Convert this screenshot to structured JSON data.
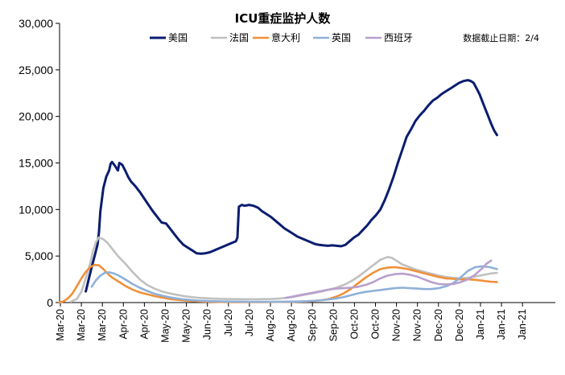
{
  "chart_data": {
    "type": "line",
    "title": "ICU重症监护人数",
    "annotation": "数据截止日期：2/4",
    "xlabel": "",
    "ylabel": "",
    "ylim": [
      0,
      30000
    ],
    "yticks": [
      0,
      5000,
      10000,
      15000,
      20000,
      25000,
      30000
    ],
    "ytick_labels": [
      "0",
      "5,000",
      "10,000",
      "15,000",
      "20,000",
      "25,000",
      "30,000"
    ],
    "x_tick_labels": [
      "Mar-20",
      "Mar-20",
      "Mar-20",
      "Apr-20",
      "Apr-20",
      "May-20",
      "May-20",
      "Jun-20",
      "Jul-20",
      "Jul-20",
      "Aug-20",
      "Aug-20",
      "Sep-20",
      "Sep-20",
      "Oct-20",
      "Oct-20",
      "Nov-20",
      "Nov-20",
      "Dec-20",
      "Dec-20",
      "Jan-21",
      "Jan-21",
      "Jan-21"
    ],
    "grid": false,
    "legend_position": "top",
    "x_range_days": [
      0,
      340
    ],
    "series": [
      {
        "name": "美国",
        "color": "#0b1d6f",
        "width": 3,
        "points": [
          [
            18,
            1200
          ],
          [
            20,
            2500
          ],
          [
            22,
            3800
          ],
          [
            24,
            5000
          ],
          [
            26,
            6200
          ],
          [
            27,
            7500
          ],
          [
            28,
            9800
          ],
          [
            30,
            12300
          ],
          [
            32,
            13500
          ],
          [
            34,
            14200
          ],
          [
            35,
            14900
          ],
          [
            36,
            15100
          ],
          [
            38,
            14700
          ],
          [
            40,
            14200
          ],
          [
            41,
            15000
          ],
          [
            43,
            14800
          ],
          [
            45,
            14200
          ],
          [
            47,
            13500
          ],
          [
            49,
            13000
          ],
          [
            52,
            12500
          ],
          [
            55,
            11900
          ],
          [
            58,
            11200
          ],
          [
            61,
            10500
          ],
          [
            64,
            9800
          ],
          [
            67,
            9200
          ],
          [
            70,
            8600
          ],
          [
            73,
            8500
          ],
          [
            76,
            7900
          ],
          [
            79,
            7300
          ],
          [
            82,
            6700
          ],
          [
            85,
            6200
          ],
          [
            88,
            5900
          ],
          [
            91,
            5600
          ],
          [
            94,
            5300
          ],
          [
            97,
            5250
          ],
          [
            100,
            5300
          ],
          [
            103,
            5400
          ],
          [
            106,
            5600
          ],
          [
            109,
            5800
          ],
          [
            112,
            6000
          ],
          [
            115,
            6200
          ],
          [
            118,
            6400
          ],
          [
            121,
            6600
          ],
          [
            122,
            7000
          ],
          [
            123,
            10300
          ],
          [
            125,
            10500
          ],
          [
            127,
            10400
          ],
          [
            130,
            10500
          ],
          [
            133,
            10400
          ],
          [
            136,
            10200
          ],
          [
            139,
            9800
          ],
          [
            142,
            9500
          ],
          [
            145,
            9200
          ],
          [
            148,
            8800
          ],
          [
            151,
            8400
          ],
          [
            154,
            8000
          ],
          [
            157,
            7700
          ],
          [
            160,
            7400
          ],
          [
            163,
            7100
          ],
          [
            166,
            6900
          ],
          [
            169,
            6700
          ],
          [
            172,
            6500
          ],
          [
            175,
            6300
          ],
          [
            178,
            6200
          ],
          [
            181,
            6150
          ],
          [
            184,
            6100
          ],
          [
            187,
            6150
          ],
          [
            190,
            6100
          ],
          [
            193,
            6050
          ],
          [
            196,
            6200
          ],
          [
            199,
            6600
          ],
          [
            202,
            7000
          ],
          [
            205,
            7300
          ],
          [
            208,
            7800
          ],
          [
            211,
            8300
          ],
          [
            214,
            8900
          ],
          [
            217,
            9400
          ],
          [
            220,
            10000
          ],
          [
            223,
            11000
          ],
          [
            226,
            12200
          ],
          [
            229,
            13500
          ],
          [
            232,
            15000
          ],
          [
            235,
            16400
          ],
          [
            238,
            17800
          ],
          [
            241,
            18600
          ],
          [
            244,
            19500
          ],
          [
            247,
            20100
          ],
          [
            250,
            20600
          ],
          [
            253,
            21200
          ],
          [
            256,
            21700
          ],
          [
            259,
            22000
          ],
          [
            262,
            22400
          ],
          [
            265,
            22700
          ],
          [
            268,
            23000
          ],
          [
            271,
            23300
          ],
          [
            274,
            23600
          ],
          [
            277,
            23800
          ],
          [
            280,
            23900
          ],
          [
            282,
            23800
          ],
          [
            284,
            23600
          ],
          [
            286,
            23000
          ],
          [
            288,
            22400
          ],
          [
            290,
            21600
          ],
          [
            292,
            20800
          ],
          [
            294,
            20000
          ],
          [
            296,
            19200
          ],
          [
            298,
            18500
          ],
          [
            300,
            18000
          ]
        ]
      },
      {
        "name": "法国",
        "color": "#c0c0c0",
        "width": 2.6,
        "points": [
          [
            8,
            100
          ],
          [
            12,
            400
          ],
          [
            15,
            1200
          ],
          [
            18,
            2600
          ],
          [
            21,
            4200
          ],
          [
            23,
            5600
          ],
          [
            25,
            6500
          ],
          [
            27,
            7000
          ],
          [
            30,
            6800
          ],
          [
            33,
            6400
          ],
          [
            36,
            5800
          ],
          [
            40,
            5000
          ],
          [
            45,
            4200
          ],
          [
            50,
            3300
          ],
          [
            55,
            2500
          ],
          [
            60,
            1900
          ],
          [
            65,
            1500
          ],
          [
            70,
            1200
          ],
          [
            75,
            1000
          ],
          [
            80,
            850
          ],
          [
            85,
            700
          ],
          [
            90,
            600
          ],
          [
            95,
            520
          ],
          [
            100,
            470
          ],
          [
            105,
            430
          ],
          [
            110,
            400
          ],
          [
            115,
            380
          ],
          [
            120,
            370
          ],
          [
            125,
            360
          ],
          [
            130,
            360
          ],
          [
            135,
            360
          ],
          [
            140,
            370
          ],
          [
            145,
            380
          ],
          [
            150,
            420
          ],
          [
            155,
            500
          ],
          [
            160,
            600
          ],
          [
            165,
            750
          ],
          [
            170,
            900
          ],
          [
            175,
            1050
          ],
          [
            180,
            1200
          ],
          [
            185,
            1400
          ],
          [
            190,
            1600
          ],
          [
            195,
            1900
          ],
          [
            200,
            2300
          ],
          [
            205,
            2800
          ],
          [
            210,
            3400
          ],
          [
            215,
            4000
          ],
          [
            220,
            4600
          ],
          [
            225,
            4900
          ],
          [
            228,
            4800
          ],
          [
            231,
            4500
          ],
          [
            235,
            4100
          ],
          [
            240,
            3800
          ],
          [
            245,
            3500
          ],
          [
            250,
            3300
          ],
          [
            255,
            3100
          ],
          [
            260,
            2900
          ],
          [
            265,
            2750
          ],
          [
            270,
            2650
          ],
          [
            275,
            2600
          ],
          [
            280,
            2650
          ],
          [
            285,
            2800
          ],
          [
            290,
            2950
          ],
          [
            295,
            3100
          ],
          [
            300,
            3200
          ]
        ]
      },
      {
        "name": "意大利",
        "color": "#f0903a",
        "width": 2.6,
        "points": [
          [
            0,
            0
          ],
          [
            3,
            150
          ],
          [
            6,
            500
          ],
          [
            9,
            1000
          ],
          [
            12,
            1800
          ],
          [
            15,
            2600
          ],
          [
            18,
            3300
          ],
          [
            21,
            3800
          ],
          [
            24,
            4050
          ],
          [
            27,
            4000
          ],
          [
            30,
            3600
          ],
          [
            33,
            3100
          ],
          [
            36,
            2700
          ],
          [
            40,
            2300
          ],
          [
            45,
            1800
          ],
          [
            50,
            1400
          ],
          [
            55,
            1100
          ],
          [
            60,
            900
          ],
          [
            65,
            700
          ],
          [
            70,
            550
          ],
          [
            75,
            400
          ],
          [
            80,
            300
          ],
          [
            85,
            230
          ],
          [
            90,
            170
          ],
          [
            95,
            130
          ],
          [
            100,
            100
          ],
          [
            110,
            70
          ],
          [
            120,
            55
          ],
          [
            130,
            50
          ],
          [
            140,
            55
          ],
          [
            150,
            65
          ],
          [
            160,
            80
          ],
          [
            170,
            120
          ],
          [
            175,
            180
          ],
          [
            180,
            260
          ],
          [
            185,
            400
          ],
          [
            190,
            650
          ],
          [
            195,
            1000
          ],
          [
            200,
            1500
          ],
          [
            205,
            2100
          ],
          [
            210,
            2700
          ],
          [
            215,
            3200
          ],
          [
            220,
            3600
          ],
          [
            225,
            3750
          ],
          [
            230,
            3800
          ],
          [
            235,
            3700
          ],
          [
            240,
            3550
          ],
          [
            245,
            3350
          ],
          [
            250,
            3150
          ],
          [
            255,
            2950
          ],
          [
            260,
            2750
          ],
          [
            265,
            2600
          ],
          [
            270,
            2550
          ],
          [
            275,
            2500
          ],
          [
            280,
            2500
          ],
          [
            285,
            2450
          ],
          [
            290,
            2350
          ],
          [
            295,
            2250
          ],
          [
            300,
            2200
          ]
        ]
      },
      {
        "name": "英国",
        "color": "#8fb0d8",
        "width": 2.6,
        "points": [
          [
            22,
            1700
          ],
          [
            25,
            2400
          ],
          [
            28,
            2900
          ],
          [
            31,
            3200
          ],
          [
            34,
            3250
          ],
          [
            37,
            3150
          ],
          [
            40,
            2950
          ],
          [
            45,
            2500
          ],
          [
            50,
            2000
          ],
          [
            55,
            1600
          ],
          [
            60,
            1250
          ],
          [
            65,
            950
          ],
          [
            70,
            750
          ],
          [
            75,
            580
          ],
          [
            80,
            450
          ],
          [
            85,
            350
          ],
          [
            90,
            280
          ],
          [
            95,
            220
          ],
          [
            100,
            180
          ],
          [
            110,
            130
          ],
          [
            120,
            100
          ],
          [
            130,
            80
          ],
          [
            140,
            75
          ],
          [
            150,
            80
          ],
          [
            160,
            100
          ],
          [
            170,
            150
          ],
          [
            180,
            250
          ],
          [
            185,
            350
          ],
          [
            190,
            450
          ],
          [
            195,
            600
          ],
          [
            200,
            800
          ],
          [
            205,
            1000
          ],
          [
            210,
            1150
          ],
          [
            215,
            1250
          ],
          [
            220,
            1350
          ],
          [
            225,
            1450
          ],
          [
            230,
            1550
          ],
          [
            235,
            1600
          ],
          [
            240,
            1550
          ],
          [
            245,
            1500
          ],
          [
            250,
            1450
          ],
          [
            255,
            1450
          ],
          [
            260,
            1550
          ],
          [
            265,
            1750
          ],
          [
            270,
            2100
          ],
          [
            275,
            2700
          ],
          [
            280,
            3400
          ],
          [
            285,
            3800
          ],
          [
            290,
            3900
          ],
          [
            295,
            3800
          ],
          [
            300,
            3600
          ]
        ]
      },
      {
        "name": "西班牙",
        "color": "#b9a0cc",
        "width": 2.6,
        "points": [
          [
            155,
            500
          ],
          [
            160,
            650
          ],
          [
            165,
            800
          ],
          [
            170,
            950
          ],
          [
            175,
            1100
          ],
          [
            180,
            1250
          ],
          [
            185,
            1400
          ],
          [
            190,
            1500
          ],
          [
            195,
            1550
          ],
          [
            200,
            1600
          ],
          [
            205,
            1700
          ],
          [
            210,
            1900
          ],
          [
            215,
            2200
          ],
          [
            220,
            2600
          ],
          [
            225,
            2900
          ],
          [
            230,
            3050
          ],
          [
            235,
            3100
          ],
          [
            240,
            3000
          ],
          [
            245,
            2800
          ],
          [
            250,
            2500
          ],
          [
            255,
            2200
          ],
          [
            260,
            2000
          ],
          [
            265,
            1950
          ],
          [
            270,
            2000
          ],
          [
            275,
            2200
          ],
          [
            280,
            2500
          ],
          [
            285,
            3000
          ],
          [
            290,
            3700
          ],
          [
            293,
            4200
          ],
          [
            296,
            4500
          ]
        ]
      }
    ]
  }
}
